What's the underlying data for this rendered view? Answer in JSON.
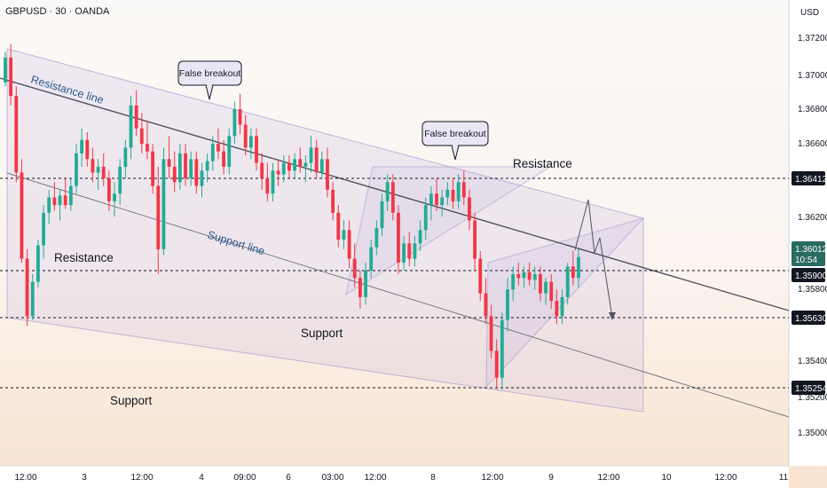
{
  "header": {
    "title": "GBPUSD · 30 · OANDA",
    "currency": "USD"
  },
  "colors": {
    "bull": "#22ab94",
    "bear": "#f23645",
    "line": "#50535e",
    "callout_bg": "#ebe6f5",
    "shade": "#b7a9e0",
    "text_dark": "#131722",
    "text_blue": "#2a5b8c",
    "tag_bg": "#131722",
    "current_bg": "#2a6b5f"
  },
  "price_axis": {
    "ticks": [
      "1.37200",
      "1.37000",
      "1.36800",
      "1.36600",
      "1.36200",
      "1.35800",
      "1.35400",
      "1.35200",
      "1.35000"
    ],
    "labels": {
      "l1": "1.36412",
      "l3": "1.35900",
      "l4": "1.35630",
      "l5": "1.35254"
    },
    "current": {
      "price": "1.36012",
      "countdown": "10:54"
    }
  },
  "time_axis": {
    "labels": [
      "12:00",
      "3",
      "12:00",
      "4",
      "09:00",
      "6",
      "03:00",
      "12:00",
      "8",
      "12:00",
      "9",
      "12:00",
      "10",
      "12:00",
      "11"
    ]
  },
  "annotations": {
    "resistance_line": "Resistance line",
    "support_line": "Support line",
    "resistance_left": "Resistance",
    "resistance_right": "Resistance",
    "support_mid": "Support",
    "support_left": "Support",
    "false_breakout_1": "False breakout",
    "false_breakout_2": "False breakout"
  },
  "chart_data": {
    "type": "candlestick",
    "symbol": "GBPUSD",
    "timeframe": "30",
    "source": "OANDA",
    "y_range": [
      1.3492,
      1.3735
    ],
    "horizontal_levels": [
      1.36412,
      1.359,
      1.3563,
      1.35254
    ],
    "current_price": 1.36012,
    "candles": [
      [
        1.3692,
        1.3708,
        1.369,
        1.3705
      ],
      [
        1.3705,
        1.3712,
        1.368,
        1.3685
      ],
      [
        1.3685,
        1.369,
        1.364,
        1.3645
      ],
      [
        1.3645,
        1.3652,
        1.3598,
        1.36
      ],
      [
        1.36,
        1.3605,
        1.3565,
        1.357
      ],
      [
        1.357,
        1.3592,
        1.3568,
        1.3588
      ],
      [
        1.3588,
        1.361,
        1.3585,
        1.3607
      ],
      [
        1.3607,
        1.3628,
        1.36,
        1.3624
      ],
      [
        1.3624,
        1.3636,
        1.3618,
        1.3632
      ],
      [
        1.3632,
        1.364,
        1.3625,
        1.3628
      ],
      [
        1.3628,
        1.3636,
        1.362,
        1.3633
      ],
      [
        1.3633,
        1.3642,
        1.3626,
        1.3628
      ],
      [
        1.3628,
        1.3642,
        1.3625,
        1.3638
      ],
      [
        1.3638,
        1.366,
        1.3634,
        1.3655
      ],
      [
        1.3655,
        1.3668,
        1.3648,
        1.3662
      ],
      [
        1.3662,
        1.3666,
        1.3648,
        1.3652
      ],
      [
        1.3652,
        1.3658,
        1.364,
        1.3645
      ],
      [
        1.3645,
        1.3652,
        1.3636,
        1.3648
      ],
      [
        1.3648,
        1.3655,
        1.3638,
        1.3642
      ],
      [
        1.3642,
        1.3646,
        1.3625,
        1.363
      ],
      [
        1.363,
        1.364,
        1.3622,
        1.3634
      ],
      [
        1.3634,
        1.3652,
        1.3628,
        1.3648
      ],
      [
        1.3648,
        1.3662,
        1.3642,
        1.3658
      ],
      [
        1.3658,
        1.3685,
        1.3652,
        1.368
      ],
      [
        1.368,
        1.3688,
        1.3664,
        1.3668
      ],
      [
        1.3668,
        1.3676,
        1.3655,
        1.366
      ],
      [
        1.366,
        1.3672,
        1.3652,
        1.3656
      ],
      [
        1.3656,
        1.366,
        1.3634,
        1.3638
      ],
      [
        1.3638,
        1.3648,
        1.3592,
        1.3605
      ],
      [
        1.3605,
        1.3658,
        1.3602,
        1.3652
      ],
      [
        1.3652,
        1.3664,
        1.3642,
        1.3648
      ],
      [
        1.3648,
        1.3656,
        1.3635,
        1.364
      ],
      [
        1.364,
        1.366,
        1.3636,
        1.3655
      ],
      [
        1.3655,
        1.366,
        1.3638,
        1.3642
      ],
      [
        1.3642,
        1.3656,
        1.3638,
        1.3652
      ],
      [
        1.3652,
        1.3656,
        1.3634,
        1.3638
      ],
      [
        1.3638,
        1.365,
        1.3632,
        1.3646
      ],
      [
        1.3646,
        1.3655,
        1.364,
        1.3651
      ],
      [
        1.3651,
        1.3664,
        1.3646,
        1.366
      ],
      [
        1.366,
        1.3668,
        1.3652,
        1.3656
      ],
      [
        1.3656,
        1.3662,
        1.3644,
        1.3648
      ],
      [
        1.3648,
        1.3668,
        1.3644,
        1.3664
      ],
      [
        1.3664,
        1.3682,
        1.366,
        1.3678
      ],
      [
        1.3678,
        1.3686,
        1.3665,
        1.367
      ],
      [
        1.367,
        1.3675,
        1.3654,
        1.3658
      ],
      [
        1.3658,
        1.3668,
        1.3652,
        1.3664
      ],
      [
        1.3664,
        1.3668,
        1.3646,
        1.365
      ],
      [
        1.365,
        1.3655,
        1.3636,
        1.3642
      ],
      [
        1.3642,
        1.365,
        1.363,
        1.3634
      ],
      [
        1.3634,
        1.365,
        1.363,
        1.3646
      ],
      [
        1.3646,
        1.3652,
        1.3638,
        1.3644
      ],
      [
        1.3644,
        1.3654,
        1.364,
        1.365
      ],
      [
        1.365,
        1.3654,
        1.3642,
        1.3646
      ],
      [
        1.3646,
        1.3655,
        1.3642,
        1.3652
      ],
      [
        1.3652,
        1.3658,
        1.3645,
        1.3648
      ],
      [
        1.3648,
        1.3654,
        1.364,
        1.365
      ],
      [
        1.365,
        1.3664,
        1.3645,
        1.3658
      ],
      [
        1.3658,
        1.3662,
        1.3642,
        1.3645
      ],
      [
        1.3645,
        1.3656,
        1.3642,
        1.3652
      ],
      [
        1.3652,
        1.3658,
        1.3632,
        1.3636
      ],
      [
        1.3636,
        1.364,
        1.362,
        1.3624
      ],
      [
        1.3624,
        1.3628,
        1.3606,
        1.361
      ],
      [
        1.361,
        1.362,
        1.3605,
        1.3615
      ],
      [
        1.3615,
        1.362,
        1.3595,
        1.36
      ],
      [
        1.36,
        1.3608,
        1.3585,
        1.359
      ],
      [
        1.359,
        1.3594,
        1.3574,
        1.358
      ],
      [
        1.358,
        1.3598,
        1.3576,
        1.3594
      ],
      [
        1.3594,
        1.361,
        1.359,
        1.3606
      ],
      [
        1.3606,
        1.362,
        1.3602,
        1.3616
      ],
      [
        1.3616,
        1.3634,
        1.3612,
        1.363
      ],
      [
        1.363,
        1.3644,
        1.3625,
        1.364
      ],
      [
        1.364,
        1.3644,
        1.362,
        1.3624
      ],
      [
        1.3624,
        1.3628,
        1.3592,
        1.3598
      ],
      [
        1.3598,
        1.3612,
        1.3594,
        1.3608
      ],
      [
        1.3608,
        1.3614,
        1.3596,
        1.36
      ],
      [
        1.36,
        1.3612,
        1.3596,
        1.3608
      ],
      [
        1.3608,
        1.362,
        1.3604,
        1.3615
      ],
      [
        1.3615,
        1.3632,
        1.361,
        1.3628
      ],
      [
        1.3628,
        1.3638,
        1.362,
        1.3634
      ],
      [
        1.3634,
        1.3642,
        1.3625,
        1.3628
      ],
      [
        1.3628,
        1.3636,
        1.3622,
        1.3632
      ],
      [
        1.3632,
        1.364,
        1.3628,
        1.3636
      ],
      [
        1.3636,
        1.3642,
        1.3626,
        1.363
      ],
      [
        1.363,
        1.3644,
        1.3626,
        1.364
      ],
      [
        1.364,
        1.3646,
        1.3628,
        1.3632
      ],
      [
        1.3632,
        1.3636,
        1.3615,
        1.362
      ],
      [
        1.362,
        1.3624,
        1.3594,
        1.36
      ],
      [
        1.36,
        1.3604,
        1.3578,
        1.3582
      ],
      [
        1.3582,
        1.359,
        1.3566,
        1.357
      ],
      [
        1.357,
        1.3576,
        1.3548,
        1.3552
      ],
      [
        1.3552,
        1.3558,
        1.3532,
        1.3538
      ],
      [
        1.3538,
        1.3572,
        1.3532,
        1.3568
      ],
      [
        1.3568,
        1.359,
        1.3562,
        1.3584
      ],
      [
        1.3584,
        1.3596,
        1.3578,
        1.3592
      ],
      [
        1.3592,
        1.3598,
        1.3586,
        1.359
      ],
      [
        1.359,
        1.3596,
        1.3585,
        1.3593
      ],
      [
        1.3593,
        1.3598,
        1.3586,
        1.3589
      ],
      [
        1.3589,
        1.3596,
        1.3584,
        1.3592
      ],
      [
        1.3592,
        1.3596,
        1.3578,
        1.3582
      ],
      [
        1.3582,
        1.359,
        1.3576,
        1.3588
      ],
      [
        1.3588,
        1.3592,
        1.3574,
        1.3578
      ],
      [
        1.3578,
        1.3584,
        1.3566,
        1.357
      ],
      [
        1.357,
        1.3584,
        1.3566,
        1.358
      ],
      [
        1.358,
        1.3598,
        1.3576,
        1.3596
      ],
      [
        1.3596,
        1.3604,
        1.3586,
        1.359
      ],
      [
        1.359,
        1.3605,
        1.3585,
        1.3601
      ]
    ]
  }
}
